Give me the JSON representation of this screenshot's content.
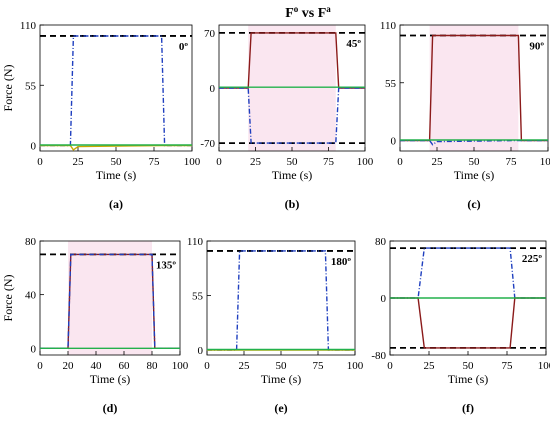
{
  "title": "F",
  "title_sup1": "o",
  "title_mid": " vs F",
  "title_sup2": "a",
  "colors": {
    "ref_dashed": "#000000",
    "blue": "#1f3fbf",
    "red": "#8b1a1a",
    "green": "#22b14c",
    "yellow": "#c8a800",
    "pink_fill": "#f6d6e6"
  },
  "chart_data": [
    {
      "type": "line",
      "panel_label": "(a)",
      "annotation": "0º",
      "xlabel": "Time (s)",
      "ylabel": "Force (N)",
      "xlim": [
        0,
        100
      ],
      "ylim": [
        -5,
        110
      ],
      "xticks": [
        "0",
        "25",
        "50",
        "75",
        "100"
      ],
      "yticks": [
        "0",
        "55",
        "110"
      ],
      "ytick_values": [
        0,
        55,
        110
      ],
      "reference_line": 100,
      "series": [
        {
          "color": "#1f3fbf",
          "dash": "dashdot",
          "x": [
            0,
            20,
            22,
            80,
            82,
            100
          ],
          "y": [
            0,
            0,
            100,
            100,
            0,
            0
          ]
        },
        {
          "color": "#c8a800",
          "dash": "solid",
          "x": [
            0,
            20,
            22,
            25,
            80,
            100
          ],
          "y": [
            0,
            0,
            -4,
            -1,
            0,
            0
          ]
        },
        {
          "color": "#22b14c",
          "dash": "solid",
          "x": [
            0,
            20,
            80,
            100
          ],
          "y": [
            0.5,
            0.5,
            0.5,
            0.5
          ]
        }
      ]
    },
    {
      "type": "line",
      "panel_label": "(b)",
      "annotation": "45º",
      "xlabel": "Time (s)",
      "ylabel": "",
      "xlim": [
        0,
        100
      ],
      "ylim": [
        -80,
        80
      ],
      "xticks": [
        "0",
        "25",
        "50",
        "75",
        "100"
      ],
      "yticks": [
        "-70",
        "0",
        "70"
      ],
      "ytick_values": [
        -70,
        0,
        70
      ],
      "reference_line": [
        70,
        -70
      ],
      "shade": [
        20,
        80
      ],
      "series": [
        {
          "color": "#8b1a1a",
          "dash": "solid",
          "x": [
            0,
            20,
            22,
            80,
            82,
            100
          ],
          "y": [
            0,
            0,
            70,
            70,
            0,
            0
          ]
        },
        {
          "color": "#1f3fbf",
          "dash": "dashdot",
          "x": [
            0,
            20,
            22,
            80,
            82,
            100
          ],
          "y": [
            0,
            0,
            -70,
            -70,
            0,
            0
          ]
        },
        {
          "color": "#22b14c",
          "dash": "solid",
          "x": [
            0,
            20,
            80,
            100
          ],
          "y": [
            1,
            1,
            1,
            1
          ]
        }
      ]
    },
    {
      "type": "line",
      "panel_label": "(c)",
      "annotation": "90º",
      "xlabel": "Time (s)",
      "ylabel": "",
      "xlim": [
        0,
        100
      ],
      "ylim": [
        -10,
        110
      ],
      "xticks": [
        "0",
        "25",
        "50",
        "75",
        "100"
      ],
      "yticks": [
        "0",
        "55",
        "110"
      ],
      "ytick_values": [
        0,
        55,
        110
      ],
      "reference_line": 100,
      "shade": [
        20,
        80
      ],
      "series": [
        {
          "color": "#8b1a1a",
          "dash": "solid",
          "x": [
            0,
            20,
            22,
            80,
            82,
            100
          ],
          "y": [
            0,
            0,
            100,
            100,
            0,
            0
          ]
        },
        {
          "color": "#1f3fbf",
          "dash": "dashdot",
          "x": [
            0,
            20,
            22,
            25,
            80,
            100
          ],
          "y": [
            0,
            0,
            -4,
            -1,
            0,
            0
          ]
        },
        {
          "color": "#22b14c",
          "dash": "solid",
          "x": [
            0,
            20,
            80,
            100
          ],
          "y": [
            0.5,
            0.5,
            0.5,
            0.5
          ]
        }
      ]
    },
    {
      "type": "line",
      "panel_label": "(d)",
      "annotation": "135º",
      "xlabel": "Time (s)",
      "ylabel": "Force (N)",
      "xlim": [
        0,
        100
      ],
      "ylim": [
        -5,
        80
      ],
      "xticks": [
        "0",
        "20",
        "40",
        "60",
        "80",
        "100"
      ],
      "yticks": [
        "0",
        "40",
        "80"
      ],
      "ytick_values": [
        0,
        40,
        80
      ],
      "reference_line": 70,
      "shade": [
        20,
        80
      ],
      "series": [
        {
          "color": "#8b1a1a",
          "dash": "solid",
          "x": [
            0,
            20,
            22,
            80,
            82,
            100
          ],
          "y": [
            0,
            0,
            70,
            70,
            0,
            0
          ]
        },
        {
          "color": "#1f3fbf",
          "dash": "dashdot",
          "x": [
            0,
            20,
            22,
            80,
            82,
            100
          ],
          "y": [
            0,
            0,
            70,
            70,
            0,
            0
          ]
        },
        {
          "color": "#22b14c",
          "dash": "solid",
          "x": [
            0,
            20,
            80,
            100
          ],
          "y": [
            0,
            0,
            0,
            0
          ]
        }
      ]
    },
    {
      "type": "line",
      "panel_label": "(e)",
      "annotation": "180º",
      "xlabel": "Time (s)",
      "ylabel": "",
      "xlim": [
        0,
        100
      ],
      "ylim": [
        -5,
        110
      ],
      "xticks": [
        "0",
        "25",
        "50",
        "75",
        "100"
      ],
      "yticks": [
        "0",
        "55",
        "110"
      ],
      "ytick_values": [
        0,
        55,
        110
      ],
      "reference_line": 100,
      "series": [
        {
          "color": "#1f3fbf",
          "dash": "dashdot",
          "x": [
            0,
            20,
            22,
            80,
            82,
            100
          ],
          "y": [
            0,
            0,
            100,
            100,
            0,
            0
          ]
        },
        {
          "color": "#c8a800",
          "dash": "solid",
          "x": [
            0,
            20,
            80,
            100
          ],
          "y": [
            0,
            0,
            0,
            0
          ]
        },
        {
          "color": "#22b14c",
          "dash": "solid",
          "x": [
            0,
            20,
            80,
            100
          ],
          "y": [
            0.5,
            0.5,
            0.5,
            0.5
          ]
        }
      ]
    },
    {
      "type": "line",
      "panel_label": "(f)",
      "annotation": "225º",
      "xlabel": "Time (s)",
      "ylabel": "",
      "xlim": [
        0,
        100
      ],
      "ylim": [
        -80,
        80
      ],
      "xticks": [
        "0",
        "25",
        "50",
        "75",
        "100"
      ],
      "yticks": [
        "-80",
        "0",
        "80"
      ],
      "ytick_values": [
        -80,
        0,
        80
      ],
      "reference_line": [
        70,
        -70
      ],
      "series": [
        {
          "color": "#1f3fbf",
          "dash": "dashdot",
          "x": [
            0,
            18,
            22,
            77,
            80,
            100
          ],
          "y": [
            0,
            0,
            70,
            70,
            0,
            0
          ]
        },
        {
          "color": "#8b1a1a",
          "dash": "solid",
          "x": [
            0,
            18,
            22,
            77,
            80,
            100
          ],
          "y": [
            0,
            0,
            -70,
            -70,
            0,
            0
          ]
        },
        {
          "color": "#22b14c",
          "dash": "solid",
          "x": [
            0,
            20,
            80,
            100
          ],
          "y": [
            0,
            0,
            0,
            0
          ]
        }
      ]
    }
  ]
}
